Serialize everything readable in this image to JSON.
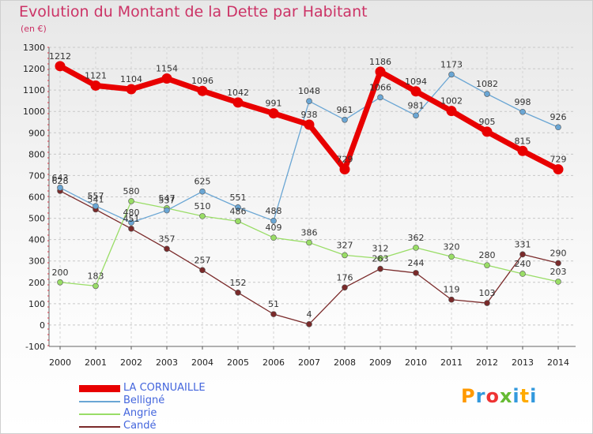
{
  "title": "Evolution du Montant de la Dette par Habitant",
  "subtitle": "(en €)",
  "logo": "Proxiti",
  "chart_data": {
    "type": "line",
    "title": "Evolution du Montant de la Dette par Habitant",
    "ylabel": "(en €)",
    "x": [
      2000,
      2001,
      2002,
      2003,
      2004,
      2005,
      2006,
      2007,
      2008,
      2009,
      2010,
      2011,
      2012,
      2013,
      2014
    ],
    "ylim": [
      -100,
      1300
    ],
    "yticks": [
      -100,
      0,
      100,
      200,
      300,
      400,
      500,
      600,
      700,
      800,
      900,
      1000,
      1100,
      1200,
      1300
    ],
    "grid": "horizontal dashed",
    "legend": "bottom-left",
    "series": [
      {
        "name": "LA CORNUAILLE",
        "color": "#e80000",
        "values": [
          1212,
          1121,
          1104,
          1154,
          1096,
          1042,
          991,
          938,
          729,
          1186,
          1094,
          1002,
          905,
          815,
          729
        ]
      },
      {
        "name": "Belligné",
        "color": "#6aa6d4",
        "values": [
          643,
          557,
          480,
          537,
          625,
          551,
          488,
          1048,
          961,
          1066,
          981,
          1173,
          1082,
          998,
          926
        ]
      },
      {
        "name": "Angrie",
        "color": "#99dd66",
        "values": [
          200,
          183,
          580,
          547,
          510,
          486,
          409,
          386,
          327,
          312,
          362,
          320,
          280,
          240,
          203
        ]
      },
      {
        "name": "Candé",
        "color": "#7a2a2a",
        "values": [
          628,
          541,
          451,
          357,
          257,
          152,
          51,
          4,
          176,
          263,
          244,
          119,
          103,
          331,
          290
        ]
      }
    ]
  }
}
